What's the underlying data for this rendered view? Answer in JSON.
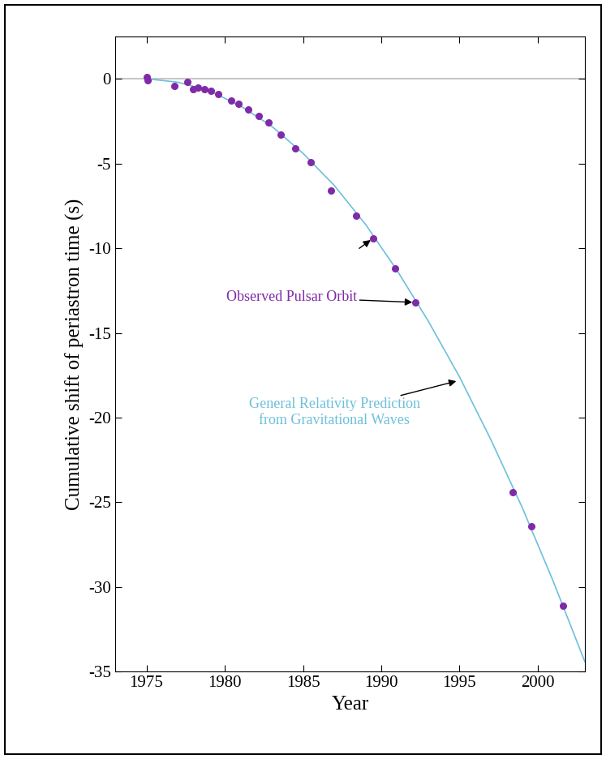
{
  "chart_data": {
    "type": "scatter",
    "x_label": "Year",
    "y_label": "Cumulative shift of periastron time (s)",
    "xlim": [
      1973,
      2003
    ],
    "xticks": [
      1975,
      1980,
      1985,
      1990,
      1995,
      2000
    ],
    "ylim": [
      -35,
      2.5
    ],
    "yticks": [
      0,
      -5,
      -10,
      -15,
      -20,
      -25,
      -30,
      -35
    ],
    "baseline": 0,
    "series": [
      {
        "name": "Observed Pulsar Orbit",
        "type": "scatter",
        "color": "#7f2aa8",
        "marker": "o",
        "x": [
          1975.0,
          1975.1,
          1976.8,
          1977.6,
          1978.0,
          1978.3,
          1978.7,
          1979.1,
          1979.6,
          1980.4,
          1980.9,
          1981.5,
          1982.2,
          1982.8,
          1983.6,
          1984.5,
          1985.5,
          1986.8,
          1988.4,
          1989.5,
          1990.9,
          1992.2,
          1998.4,
          1999.6,
          2001.6
        ],
        "values": [
          0.1,
          -0.1,
          -0.4,
          -0.2,
          -0.6,
          -0.5,
          -0.6,
          -0.7,
          -0.9,
          -1.3,
          -1.5,
          -1.8,
          -2.2,
          -2.6,
          -3.3,
          -4.1,
          -4.9,
          -6.6,
          -8.1,
          -9.4,
          -11.2,
          -13.2,
          -24.4,
          -26.4,
          -31.1
        ]
      },
      {
        "name": "General Relativity Prediction\nfrom Gravitational Waves",
        "type": "line",
        "color": "#6cc0dc",
        "line_style": "solid",
        "x": [
          1975,
          1977,
          1979,
          1981,
          1983,
          1985,
          1987,
          1989,
          1991,
          1993,
          1995,
          1997,
          1999,
          2001,
          2003
        ],
        "values": [
          0.0,
          -0.2,
          -0.7,
          -1.6,
          -2.8,
          -4.4,
          -6.3,
          -8.6,
          -11.3,
          -14.3,
          -17.6,
          -21.3,
          -25.3,
          -29.7,
          -34.4
        ]
      }
    ],
    "annotations": [
      {
        "text": "Observed Pulsar Orbit",
        "color": "#7f2aa8",
        "points": [
          [
            1989.5,
            -9.4
          ],
          [
            1992.2,
            -13.2
          ]
        ]
      },
      {
        "text": "General Relativity Prediction\nfrom Gravitational Waves",
        "color": "#6cc0dc",
        "points": [
          [
            1995.0,
            -17.8
          ]
        ]
      }
    ]
  }
}
